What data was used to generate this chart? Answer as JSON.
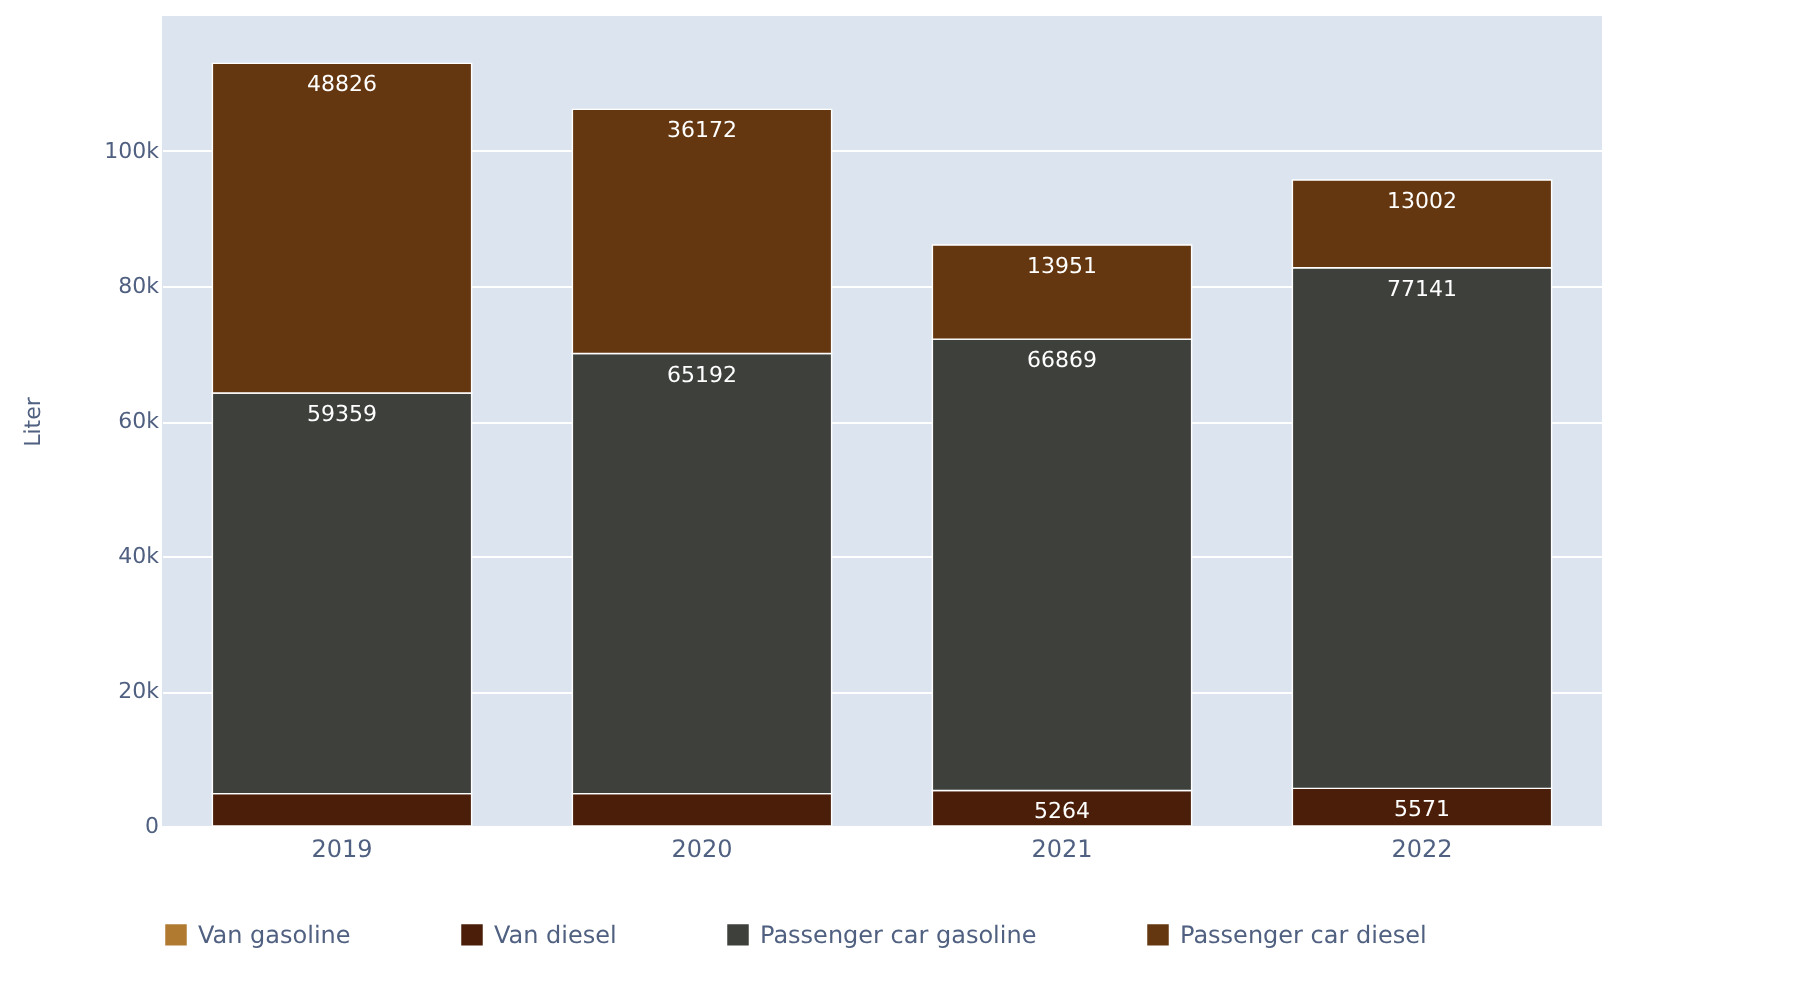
{
  "chart_data": {
    "type": "bar",
    "stacked": true,
    "ylabel": "Liter",
    "categories": [
      "2019",
      "2020",
      "2021",
      "2022"
    ],
    "series": [
      {
        "name": "Van gasoline",
        "color": "#b07a30",
        "values": [
          null,
          null,
          null,
          null
        ],
        "value_labels": [
          null,
          null,
          null,
          null
        ]
      },
      {
        "name": "Van diesel",
        "color": "#4a1e08",
        "values": [
          4800,
          4800,
          5264,
          5571
        ],
        "value_labels": [
          null,
          null,
          "5264",
          "5571"
        ]
      },
      {
        "name": "Passenger car gasoline",
        "color": "#3d403b",
        "values": [
          59359,
          65192,
          66869,
          77141
        ],
        "value_labels": [
          "59359",
          "65192",
          "66869",
          "77141"
        ]
      },
      {
        "name": "Passenger car diesel",
        "color": "#653710",
        "values": [
          48826,
          36172,
          13951,
          13002
        ],
        "value_labels": [
          "48826",
          "36172",
          "13951",
          "13002"
        ]
      }
    ],
    "ylim": [
      0,
      120000
    ],
    "yticks": [
      0,
      {
        "value": 20000,
        "label": "20k"
      },
      {
        "value": 40000,
        "label": "40k"
      },
      {
        "value": 60000,
        "label": "60k"
      },
      {
        "value": 80000,
        "label": "80k"
      },
      {
        "value": 100000,
        "label": "100k"
      }
    ],
    "grid": "y",
    "legend": "bottom"
  }
}
